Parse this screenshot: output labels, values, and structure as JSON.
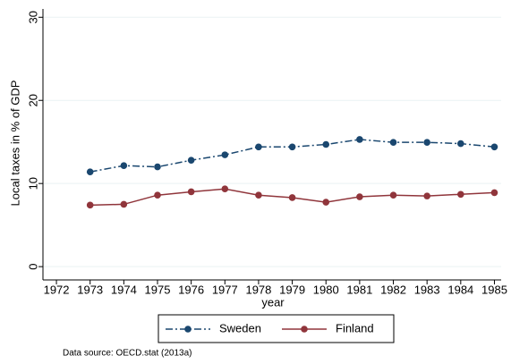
{
  "chart_data": {
    "type": "line",
    "x_label": "year",
    "y_label": "Local taxes in % of GDP",
    "source": "Data source: OECD.stat (2013a)",
    "x": [
      1973,
      1974,
      1975,
      1976,
      1977,
      1978,
      1979,
      1980,
      1981,
      1982,
      1983,
      1984,
      1985
    ],
    "series": [
      {
        "name": "Sweden",
        "color": "#1a476f",
        "dash": "dashdot",
        "values": [
          11.4,
          12.15,
          12.0,
          12.8,
          13.45,
          14.4,
          14.4,
          14.7,
          15.3,
          14.95,
          14.95,
          14.8,
          14.4
        ]
      },
      {
        "name": "Finland",
        "color": "#90353b",
        "dash": "solid",
        "values": [
          7.4,
          7.5,
          8.6,
          9.0,
          9.35,
          8.6,
          8.3,
          7.75,
          8.4,
          8.6,
          8.5,
          8.7,
          8.9
        ]
      }
    ],
    "xlim": [
      1971.6,
      1985.2
    ],
    "xticks": [
      1972,
      1973,
      1974,
      1975,
      1976,
      1977,
      1978,
      1979,
      1980,
      1981,
      1982,
      1983,
      1984,
      1985
    ],
    "ylim": [
      -1.6,
      31
    ],
    "yticks": [
      0,
      10,
      20,
      30
    ],
    "grid": true
  }
}
